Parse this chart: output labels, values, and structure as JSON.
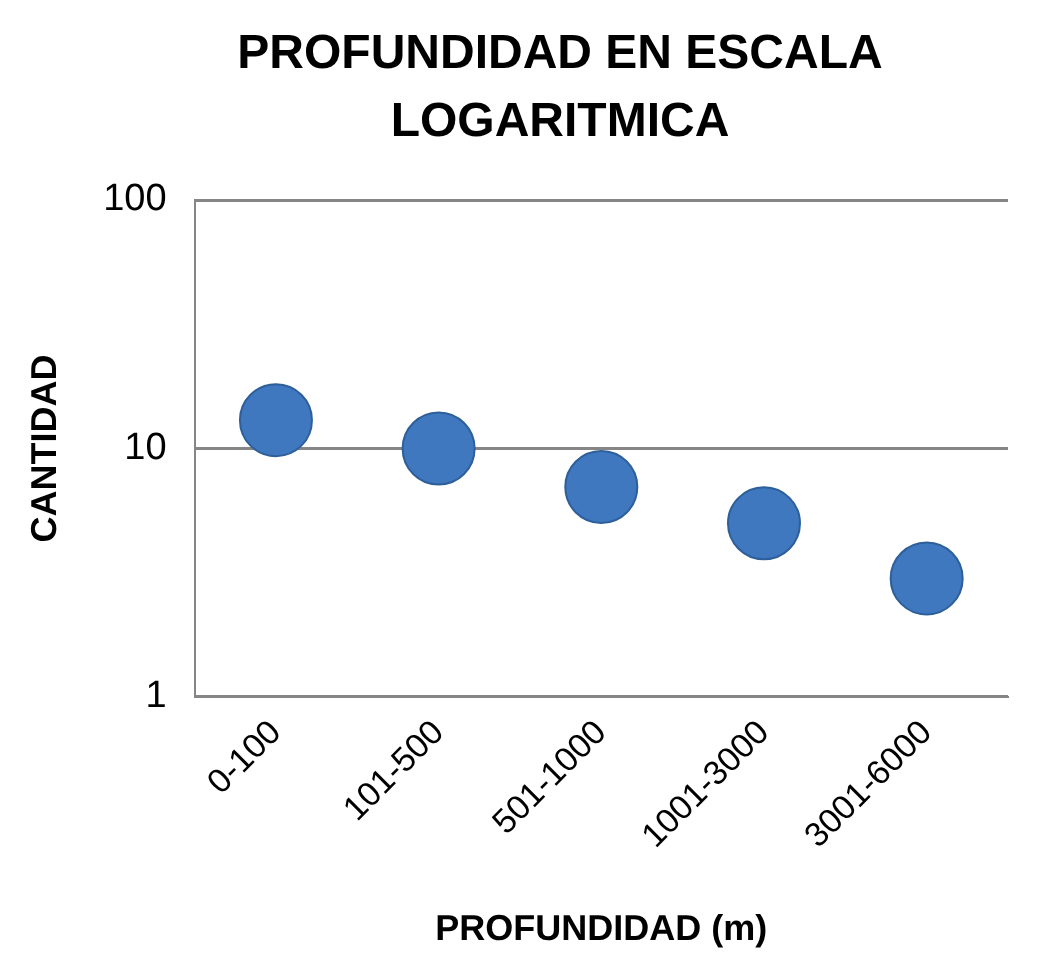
{
  "chart_data": {
    "type": "scatter",
    "title": "PROFUNDIDAD EN ESCALA LOGARITMICA",
    "xlabel": "PROFUNDIDAD (m)",
    "ylabel": "CANTIDAD",
    "categories": [
      "0-100",
      "101-500",
      "501-1000",
      "1001-3000",
      "3001-6000"
    ],
    "series": [
      {
        "color": "#3f78bf",
        "values": [
          13,
          10,
          7,
          5,
          3
        ]
      }
    ],
    "log": "y",
    "ylim": [
      1,
      100
    ],
    "yticks": [
      1,
      10,
      100
    ],
    "grid": "y",
    "legend": false,
    "marker": "circle"
  }
}
